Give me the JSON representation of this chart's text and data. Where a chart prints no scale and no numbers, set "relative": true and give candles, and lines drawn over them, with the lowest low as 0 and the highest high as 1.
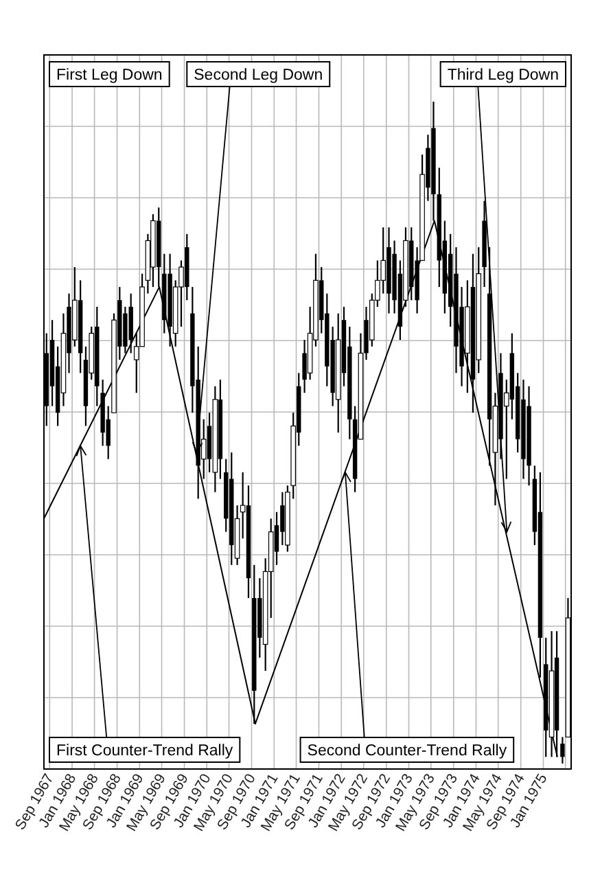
{
  "chart_data": {
    "type": "candlestick",
    "relative": true,
    "grid": true,
    "xlim": [
      "1967-08-01",
      "1975-06-01"
    ],
    "xticks": [
      {
        "value": "1967-09",
        "label": "Sep 1967"
      },
      {
        "value": "1968-01",
        "label": "Jan 1968"
      },
      {
        "value": "1968-05",
        "label": "May 1968"
      },
      {
        "value": "1968-09",
        "label": "Sep 1968"
      },
      {
        "value": "1969-01",
        "label": "Jan 1969"
      },
      {
        "value": "1969-05",
        "label": "May 1969"
      },
      {
        "value": "1969-09",
        "label": "Sep 1969"
      },
      {
        "value": "1970-01",
        "label": "Jan 1970"
      },
      {
        "value": "1970-05",
        "label": "May 1970"
      },
      {
        "value": "1970-09",
        "label": "Sep 1970"
      },
      {
        "value": "1971-01",
        "label": "Jan 1971"
      },
      {
        "value": "1971-05",
        "label": "May 1971"
      },
      {
        "value": "1971-09",
        "label": "Sep 1971"
      },
      {
        "value": "1972-01",
        "label": "Jan 1972"
      },
      {
        "value": "1972-05",
        "label": "May 1972"
      },
      {
        "value": "1972-09",
        "label": "Sep 1972"
      },
      {
        "value": "1973-01",
        "label": "Jan 1973"
      },
      {
        "value": "1973-05",
        "label": "May 1973"
      },
      {
        "value": "1973-09",
        "label": "Sep 1973"
      },
      {
        "value": "1974-01",
        "label": "Jan 1974"
      },
      {
        "value": "1974-05",
        "label": "May 1974"
      },
      {
        "value": "1974-09",
        "label": "Sep 1974"
      },
      {
        "value": "1975-01",
        "label": "Jan 1975"
      },
      {
        "value": "1975-05",
        "label": null
      }
    ],
    "series": [
      {
        "type": "line",
        "color": "#000000",
        "x": [
          "1967-08-01",
          "1969-04-18",
          "1970-09-21",
          "1973-05-20",
          "1975-03-18"
        ],
        "values": [
          0.37,
          0.72,
          0.06,
          0.82,
          0.01
        ]
      },
      {
        "type": "candlestick",
        "color": "#000000",
        "x": [
          "1967-08-15",
          "1967-09-15",
          "1967-10-15",
          "1967-11-15",
          "1967-12-15",
          "1968-01-15",
          "1968-02-15",
          "1968-03-15",
          "1968-04-15",
          "1968-05-15",
          "1968-06-15",
          "1968-07-15",
          "1968-08-15",
          "1968-09-15",
          "1968-10-15",
          "1968-11-15",
          "1968-12-15",
          "1969-01-15",
          "1969-02-15",
          "1969-03-15",
          "1969-04-15",
          "1969-05-15",
          "1969-06-15",
          "1969-07-15",
          "1969-08-15",
          "1969-09-15",
          "1969-10-15",
          "1969-11-15",
          "1969-12-15",
          "1970-01-15",
          "1970-02-15",
          "1970-03-15",
          "1970-04-15",
          "1970-05-15",
          "1970-06-15",
          "1970-07-15",
          "1970-08-15",
          "1970-09-15",
          "1970-10-15",
          "1970-11-15",
          "1970-12-15",
          "1971-01-15",
          "1971-02-15",
          "1971-03-15",
          "1971-04-15",
          "1971-05-15",
          "1971-06-15",
          "1971-07-15",
          "1971-08-15",
          "1971-09-15",
          "1971-10-15",
          "1971-11-15",
          "1971-12-15",
          "1972-01-15",
          "1972-02-15",
          "1972-03-15",
          "1972-04-15",
          "1972-05-15",
          "1972-06-15",
          "1972-07-15",
          "1972-08-15",
          "1972-09-15",
          "1972-10-15",
          "1972-11-15",
          "1972-12-15",
          "1973-01-15",
          "1973-02-15",
          "1973-03-15",
          "1973-04-15",
          "1973-05-15",
          "1973-06-15",
          "1973-07-15",
          "1973-08-15",
          "1973-09-15",
          "1973-10-15",
          "1973-11-15",
          "1973-12-15",
          "1974-01-15",
          "1974-02-15",
          "1974-03-15",
          "1974-04-15",
          "1974-05-15",
          "1974-06-15",
          "1974-07-15",
          "1974-08-15",
          "1974-09-15",
          "1974-10-15",
          "1974-11-15",
          "1974-12-15",
          "1975-01-15",
          "1975-02-15",
          "1975-03-15",
          "1975-04-15",
          "1975-05-15"
        ],
        "ohlc": [
          [
            0.62,
            0.65,
            0.51,
            0.54
          ],
          [
            0.64,
            0.67,
            0.54,
            0.57
          ],
          [
            0.6,
            0.63,
            0.51,
            0.53
          ],
          [
            0.56,
            0.68,
            0.54,
            0.65
          ],
          [
            0.69,
            0.71,
            0.59,
            0.62
          ],
          [
            0.64,
            0.75,
            0.63,
            0.7
          ],
          [
            0.7,
            0.73,
            0.59,
            0.62
          ],
          [
            0.61,
            0.63,
            0.51,
            0.54
          ],
          [
            0.59,
            0.66,
            0.58,
            0.65
          ],
          [
            0.66,
            0.69,
            0.54,
            0.57
          ],
          [
            0.56,
            0.58,
            0.48,
            0.5
          ],
          [
            0.52,
            0.54,
            0.46,
            0.48
          ],
          [
            0.53,
            0.68,
            0.53,
            0.67
          ],
          [
            0.7,
            0.72,
            0.61,
            0.63
          ],
          [
            0.68,
            0.69,
            0.62,
            0.63
          ],
          [
            0.69,
            0.71,
            0.62,
            0.64
          ],
          [
            0.61,
            0.65,
            0.56,
            0.63
          ],
          [
            0.63,
            0.74,
            0.63,
            0.72
          ],
          [
            0.73,
            0.8,
            0.71,
            0.79
          ],
          [
            0.75,
            0.83,
            0.72,
            0.82
          ],
          [
            0.82,
            0.84,
            0.72,
            0.75
          ],
          [
            0.74,
            0.77,
            0.65,
            0.67
          ],
          [
            0.74,
            0.77,
            0.63,
            0.66
          ],
          [
            0.65,
            0.73,
            0.63,
            0.72
          ],
          [
            0.72,
            0.76,
            0.66,
            0.75
          ],
          [
            0.78,
            0.8,
            0.7,
            0.72
          ],
          [
            0.68,
            0.72,
            0.53,
            0.57
          ],
          [
            0.58,
            0.63,
            0.4,
            0.45
          ],
          [
            0.46,
            0.52,
            0.43,
            0.49
          ],
          [
            0.51,
            0.53,
            0.44,
            0.46
          ],
          [
            0.44,
            0.57,
            0.41,
            0.55
          ],
          [
            0.55,
            0.58,
            0.43,
            0.46
          ],
          [
            0.44,
            0.46,
            0.35,
            0.37
          ],
          [
            0.43,
            0.47,
            0.3,
            0.33
          ],
          [
            0.31,
            0.39,
            0.3,
            0.37
          ],
          [
            0.38,
            0.44,
            0.34,
            0.39
          ],
          [
            0.39,
            0.42,
            0.25,
            0.28
          ],
          [
            0.25,
            0.3,
            0.06,
            0.11
          ],
          [
            0.25,
            0.28,
            0.16,
            0.19
          ],
          [
            0.18,
            0.31,
            0.14,
            0.29
          ],
          [
            0.29,
            0.37,
            0.22,
            0.35
          ],
          [
            0.36,
            0.38,
            0.3,
            0.32
          ],
          [
            0.39,
            0.41,
            0.33,
            0.35
          ],
          [
            0.33,
            0.42,
            0.32,
            0.41
          ],
          [
            0.42,
            0.53,
            0.4,
            0.51
          ],
          [
            0.57,
            0.59,
            0.48,
            0.5
          ],
          [
            0.62,
            0.64,
            0.56,
            0.58
          ],
          [
            0.59,
            0.69,
            0.58,
            0.65
          ],
          [
            0.64,
            0.77,
            0.63,
            0.73
          ],
          [
            0.73,
            0.75,
            0.65,
            0.67
          ],
          [
            0.68,
            0.71,
            0.57,
            0.6
          ],
          [
            0.64,
            0.66,
            0.54,
            0.56
          ],
          [
            0.55,
            0.68,
            0.5,
            0.64
          ],
          [
            0.67,
            0.69,
            0.57,
            0.59
          ],
          [
            0.63,
            0.66,
            0.49,
            0.52
          ],
          [
            0.52,
            0.54,
            0.41,
            0.43
          ],
          [
            0.49,
            0.65,
            0.49,
            0.62
          ],
          [
            0.67,
            0.69,
            0.61,
            0.62
          ],
          [
            0.64,
            0.71,
            0.63,
            0.7
          ],
          [
            0.7,
            0.76,
            0.69,
            0.73
          ],
          [
            0.73,
            0.81,
            0.71,
            0.76
          ],
          [
            0.78,
            0.81,
            0.68,
            0.71
          ],
          [
            0.77,
            0.79,
            0.68,
            0.7
          ],
          [
            0.74,
            0.76,
            0.64,
            0.66
          ],
          [
            0.7,
            0.81,
            0.69,
            0.79
          ],
          [
            0.79,
            0.81,
            0.7,
            0.72
          ],
          [
            0.76,
            0.78,
            0.68,
            0.7
          ],
          [
            0.76,
            0.92,
            0.76,
            0.89
          ],
          [
            0.93,
            0.95,
            0.85,
            0.87
          ],
          [
            0.96,
            1,
            0.82,
            0.86
          ],
          [
            0.86,
            0.9,
            0.72,
            0.76
          ],
          [
            0.79,
            0.82,
            0.68,
            0.71
          ],
          [
            0.77,
            0.8,
            0.66,
            0.69
          ],
          [
            0.74,
            0.78,
            0.59,
            0.63
          ],
          [
            0.69,
            0.72,
            0.57,
            0.6
          ],
          [
            0.62,
            0.73,
            0.56,
            0.69
          ],
          [
            0.72,
            0.77,
            0.53,
            0.58
          ],
          [
            0.61,
            0.78,
            0.59,
            0.74
          ],
          [
            0.82,
            0.85,
            0.72,
            0.75
          ],
          [
            0.71,
            0.78,
            0.45,
            0.52
          ],
          [
            0.47,
            0.56,
            0.39,
            0.54
          ],
          [
            0.59,
            0.62,
            0.46,
            0.49
          ],
          [
            0.54,
            0.58,
            0.43,
            0.56
          ],
          [
            0.62,
            0.65,
            0.52,
            0.55
          ],
          [
            0.57,
            0.59,
            0.47,
            0.49
          ],
          [
            0.55,
            0.58,
            0.43,
            0.46
          ],
          [
            0.54,
            0.57,
            0.42,
            0.45
          ],
          [
            0.43,
            0.45,
            0.33,
            0.35
          ],
          [
            0.38,
            0.44,
            0.13,
            0.19
          ],
          [
            0.15,
            0.19,
            0.01,
            0.05
          ],
          [
            0.04,
            0.2,
            0.01,
            0.14
          ],
          [
            0.16,
            0.2,
            0.01,
            0.05
          ],
          [
            0.03,
            0.04,
            0,
            0.01
          ],
          [
            0.04,
            0.25,
            0.04,
            0.22
          ]
        ]
      }
    ],
    "annotations": [
      "First Leg Down",
      {
        "text": "First Counter-Trend Rally",
        "x": "1968-02-15",
        "y": 0.48
      },
      {
        "text": "Second Leg Down",
        "x": "1969-11-06",
        "y": 0.47
      },
      {
        "text": "Second Counter-Trend Rally",
        "x": "1972-01-22",
        "y": 0.44
      },
      {
        "text": "Third Leg Down",
        "x": "1974-06-17",
        "y": 0.35
      }
    ]
  }
}
